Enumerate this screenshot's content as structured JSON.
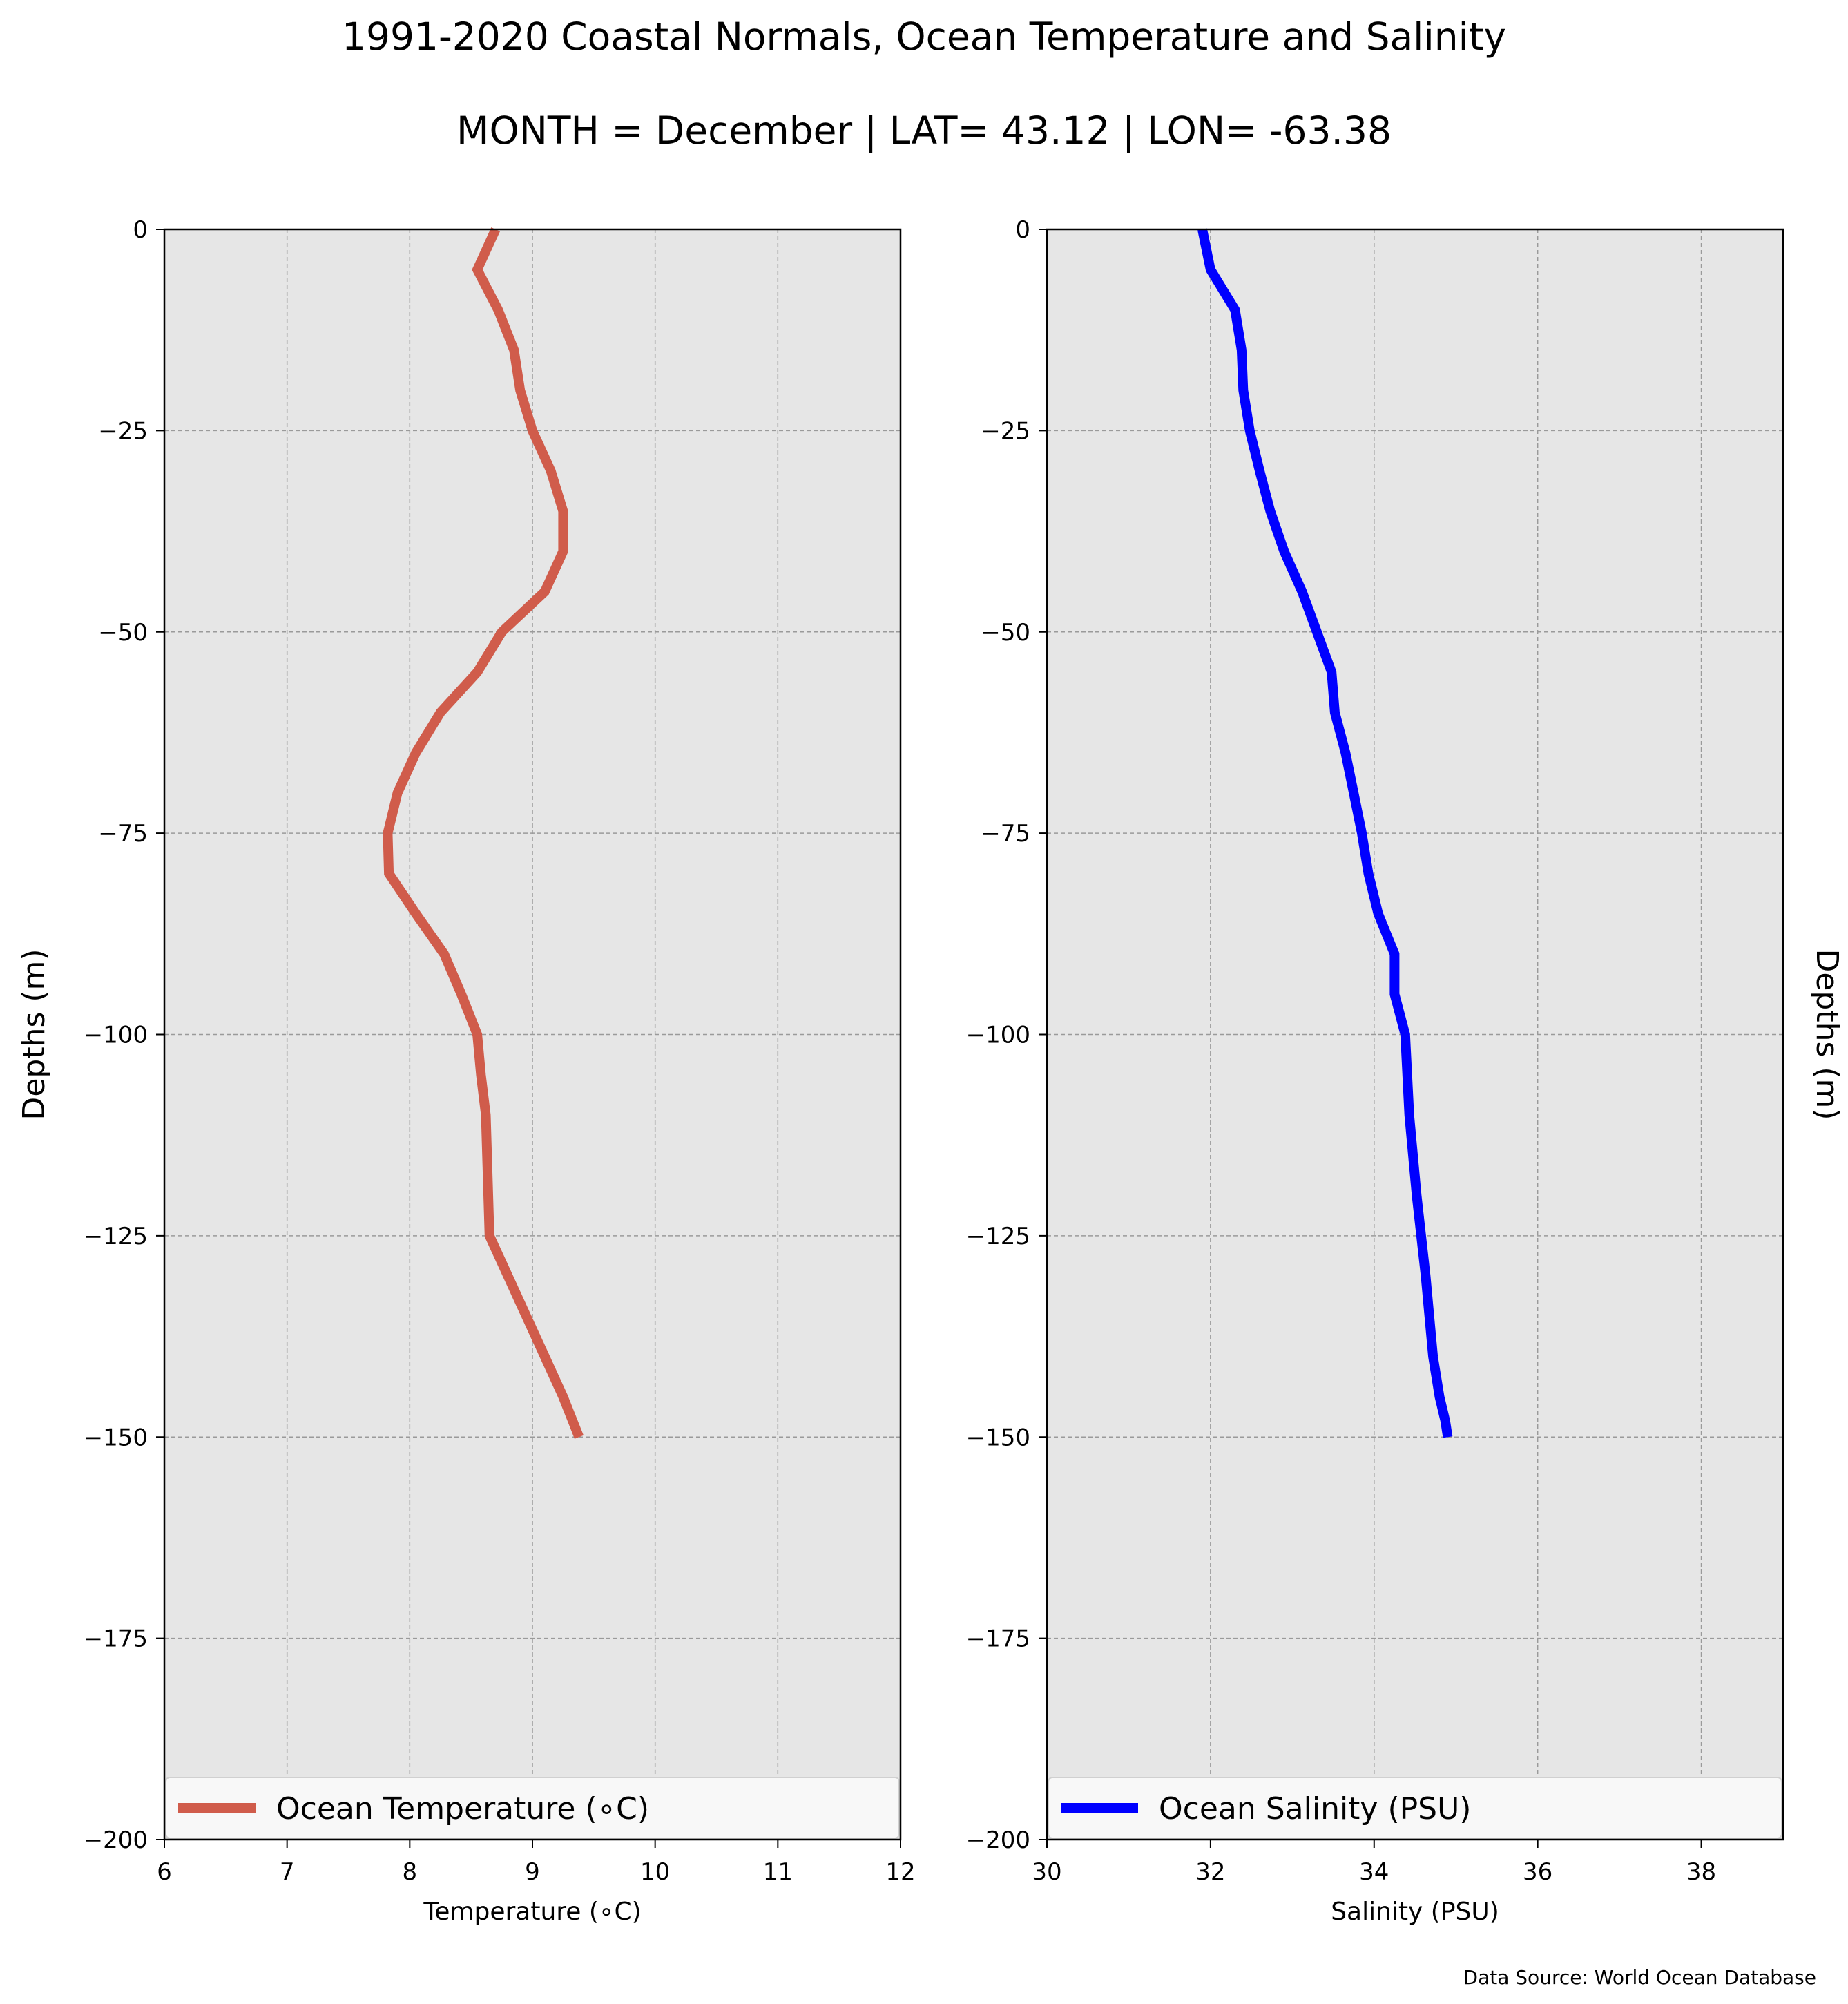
{
  "figure": {
    "title": "1991-2020 Coastal Normals, Ocean Temperature and Salinity",
    "subtitle": "MONTH = December | LAT= 43.12 | LON= -63.38",
    "source_note": "Data Source: World Ocean Database"
  },
  "chart_data": [
    {
      "type": "line",
      "xlabel": "Temperature (∘C)",
      "ylabel": "Depths (m)",
      "xlim": [
        6,
        12
      ],
      "ylim": [
        -200,
        0
      ],
      "xticks": [
        6,
        7,
        8,
        9,
        10,
        11,
        12
      ],
      "yticks": [
        0,
        -25,
        -50,
        -75,
        -100,
        -125,
        -150,
        -175,
        -200
      ],
      "grid": true,
      "legend_position": "lower center",
      "series": [
        {
          "name": "Ocean Temperature (∘C)",
          "color": "#d05c4b",
          "x": [
            8.7,
            8.55,
            8.72,
            8.85,
            8.9,
            9.0,
            9.15,
            9.25,
            9.25,
            9.1,
            8.75,
            8.55,
            8.25,
            8.05,
            7.9,
            7.82,
            7.83,
            8.05,
            8.28,
            8.42,
            8.55,
            8.58,
            8.62,
            8.65,
            8.8,
            8.95,
            9.1,
            9.25,
            9.38
          ],
          "y": [
            0,
            -5,
            -10,
            -15,
            -20,
            -25,
            -30,
            -35,
            -40,
            -45,
            -50,
            -55,
            -60,
            -65,
            -70,
            -75,
            -80,
            -85,
            -90,
            -95,
            -100,
            -105,
            -110,
            -125,
            -130,
            -135,
            -140,
            -145,
            -150
          ]
        }
      ]
    },
    {
      "type": "line",
      "xlabel": "Salinity (PSU)",
      "ylabel": "Depths (m)",
      "xlim": [
        30,
        39
      ],
      "ylim": [
        -200,
        0
      ],
      "xticks": [
        30,
        32,
        34,
        36,
        38
      ],
      "yticks": [
        0,
        -25,
        -50,
        -75,
        -100,
        -125,
        -150,
        -175,
        -200
      ],
      "grid": true,
      "legend_position": "lower center",
      "series": [
        {
          "name": "Ocean Salinity (PSU)",
          "color": "#0000ff",
          "x": [
            31.9,
            32.0,
            32.3,
            32.38,
            32.4,
            32.48,
            32.6,
            32.73,
            32.9,
            33.12,
            33.3,
            33.48,
            33.52,
            33.65,
            33.75,
            33.85,
            33.93,
            34.05,
            34.25,
            34.25,
            34.38,
            34.43,
            34.52,
            34.63,
            34.72,
            34.8,
            34.87,
            34.9
          ],
          "y": [
            0,
            -5,
            -10,
            -15,
            -20,
            -25,
            -30,
            -35,
            -40,
            -45,
            -50,
            -55,
            -60,
            -65,
            -70,
            -75,
            -80,
            -85,
            -90,
            -95,
            -100,
            -110,
            -120,
            -130,
            -140,
            -145,
            -148,
            -150
          ]
        }
      ]
    }
  ]
}
